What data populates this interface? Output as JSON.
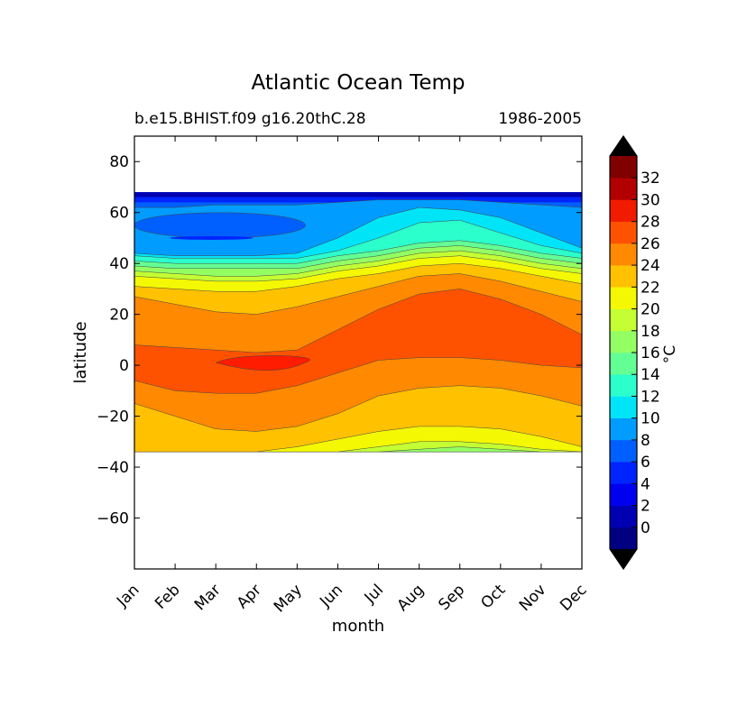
{
  "chart_data": {
    "type": "contour",
    "title": "Atlantic Ocean Temp",
    "subtitle_left": "b.e15.BHIST.f09 g16.20thC.28",
    "subtitle_right": "1986-2005",
    "xlabel": "month",
    "ylabel": "latitude",
    "x_categories": [
      "Jan",
      "Feb",
      "Mar",
      "Apr",
      "May",
      "Jun",
      "Jul",
      "Aug",
      "Sep",
      "Oct",
      "Nov",
      "Dec"
    ],
    "ylim": [
      -80,
      90
    ],
    "yticks": [
      80,
      60,
      40,
      20,
      0,
      -20,
      -40,
      -60
    ],
    "data_lat_range": [
      -34,
      68
    ],
    "colorbar": {
      "label": "°C",
      "tick_labels": [
        0,
        2,
        4,
        6,
        8,
        10,
        12,
        14,
        16,
        18,
        20,
        22,
        24,
        26,
        28,
        30,
        32
      ],
      "levels": [
        -2,
        0,
        2,
        4,
        6,
        8,
        10,
        12,
        14,
        16,
        18,
        20,
        22,
        24,
        26,
        28,
        30,
        32,
        34
      ],
      "colors": [
        "#000080",
        "#0000b2",
        "#0000f1",
        "#0024ff",
        "#0060ff",
        "#009cff",
        "#00e4f8",
        "#2bffcc",
        "#63ff94",
        "#94ff63",
        "#c4ff33",
        "#f4f802",
        "#ffc100",
        "#ff8900",
        "#ff5200",
        "#f11c00",
        "#b20000",
        "#800000"
      ],
      "extend_under": "#000000",
      "extend_over": "#000000"
    },
    "isotherm_bands": [
      {
        "min": 26,
        "color": "#ff5200",
        "lat_top": [
          8,
          7,
          6,
          5,
          6,
          14,
          22,
          28,
          30,
          26,
          20,
          12
        ],
        "lat_bottom": [
          -6,
          -10,
          -11,
          -11,
          -8,
          -3,
          2,
          3,
          3,
          2,
          0,
          -1
        ]
      },
      {
        "min": 24,
        "color": "#ff8900",
        "lat_top": [
          27,
          24,
          21,
          20,
          23,
          27,
          31,
          35,
          36,
          33,
          29,
          25
        ],
        "lat_bottom": [
          -15,
          -20,
          -25,
          -26,
          -24,
          -19,
          -12,
          -9,
          -8,
          -9,
          -12,
          -16
        ]
      },
      {
        "min": 22,
        "color": "#ffc100",
        "lat_top": [
          31,
          30,
          29,
          29,
          31,
          34,
          36,
          39,
          40,
          38,
          35,
          32
        ],
        "lat_bottom": [
          -34,
          -34,
          -34,
          -34,
          -32,
          -29,
          -26,
          -24,
          -24,
          -25,
          -28,
          -32
        ]
      },
      {
        "min": 20,
        "color": "#f4f802",
        "lat_top": [
          35,
          34,
          33,
          33,
          34,
          37,
          39,
          42,
          43,
          41,
          38,
          36
        ],
        "lat_bottom": [
          -34,
          -34,
          -34,
          -34,
          -34,
          -34,
          -32,
          -30,
          -30,
          -31,
          -33,
          -34
        ]
      },
      {
        "min": 18,
        "color": "#c4ff33",
        "lat_top": [
          37,
          36,
          35,
          35,
          36,
          39,
          41,
          44,
          45,
          43,
          40,
          38
        ],
        "lat_bottom": [
          -34,
          -34,
          -34,
          -34,
          -34,
          -34,
          -34,
          -33,
          -32,
          -33,
          -34,
          -34
        ]
      },
      {
        "min": 16,
        "color": "#94ff63",
        "lat_top": [
          39,
          38,
          38,
          38,
          38,
          41,
          43,
          46,
          47,
          45,
          42,
          40
        ],
        "lat_bottom": [
          -34,
          -34,
          -34,
          -34,
          -34,
          -34,
          -34,
          -34,
          -34,
          -34,
          -34,
          -34
        ]
      },
      {
        "min": 14,
        "color": "#63ff94",
        "lat_top": [
          41,
          40,
          40,
          40,
          40,
          43,
          45,
          48,
          49,
          47,
          44,
          42
        ],
        "lat_bottom": [
          -34,
          -34,
          -34,
          -34,
          -34,
          -34,
          -34,
          -34,
          -34,
          -34,
          -34,
          -34
        ]
      },
      {
        "min": 12,
        "color": "#2bffcc",
        "lat_top": [
          43,
          42,
          42,
          42,
          42,
          45,
          50,
          56,
          57,
          52,
          47,
          44
        ],
        "lat_bottom": [
          -34,
          -34,
          -34,
          -34,
          -34,
          -34,
          -34,
          -34,
          -34,
          -34,
          -34,
          -34
        ]
      },
      {
        "min": 10,
        "color": "#00e4f8",
        "lat_top": [
          44,
          43,
          43,
          43,
          44,
          50,
          58,
          62,
          61,
          58,
          52,
          46
        ],
        "lat_bottom": [
          -34,
          -34,
          -34,
          -34,
          -34,
          -34,
          -34,
          -34,
          -34,
          -34,
          -34,
          -34
        ]
      },
      {
        "min": 8,
        "color": "#009cff",
        "lat_top": [
          62,
          62,
          63,
          63,
          63,
          64,
          65,
          65,
          65,
          64,
          63,
          62
        ],
        "lat_bottom": [
          -34,
          -34,
          -34,
          -34,
          -34,
          -34,
          -34,
          -34,
          -34,
          -34,
          -34,
          -34
        ]
      }
    ]
  }
}
